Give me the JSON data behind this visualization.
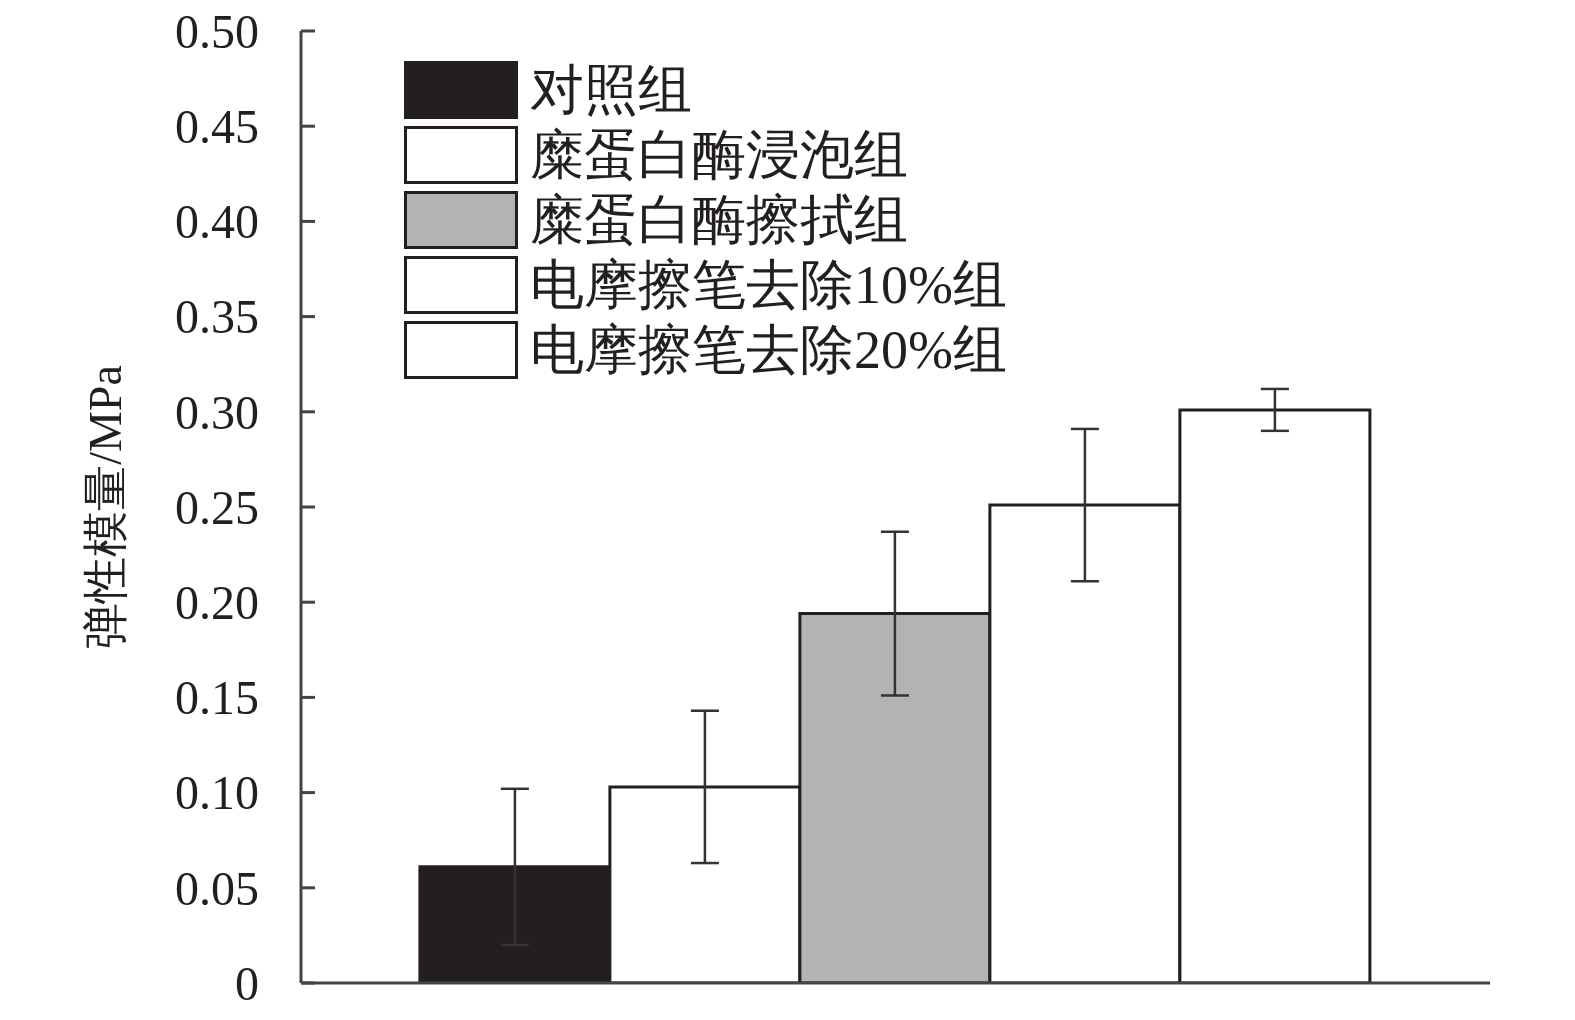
{
  "chart_data": {
    "type": "bar",
    "ylabel": "弹性模量/MPa",
    "categories": [
      null
    ],
    "series": [
      {
        "name": "对照组",
        "color": "#231f20",
        "values": [
          0.061
        ],
        "errors": [
          0.041
        ]
      },
      {
        "name": "糜蛋白酶浸泡组",
        "color": "#ffffff",
        "values": [
          0.103
        ],
        "errors": [
          0.04
        ]
      },
      {
        "name": "糜蛋白酶擦拭组",
        "color": "#b3b3b3",
        "values": [
          0.194
        ],
        "errors": [
          0.043
        ]
      },
      {
        "name": "电摩擦笔去除10%组",
        "color": "#ffffff",
        "values": [
          0.251
        ],
        "errors": [
          0.04
        ]
      },
      {
        "name": "电摩擦笔去除20%组",
        "color": "#ffffff",
        "values": [
          0.301
        ],
        "errors": [
          0.011
        ]
      }
    ],
    "ylim": [
      0,
      0.5
    ],
    "yticks": [
      0,
      0.05,
      {
        "value": 0.1,
        "label": "0.10"
      },
      0.15,
      {
        "value": 0.2,
        "label": "0.20"
      },
      0.25,
      {
        "value": 0.3,
        "label": "0.30"
      },
      0.35,
      {
        "value": 0.4,
        "label": "0.40"
      },
      0.45,
      {
        "value": 0.5,
        "label": "0.50"
      }
    ],
    "legend": "top left"
  }
}
